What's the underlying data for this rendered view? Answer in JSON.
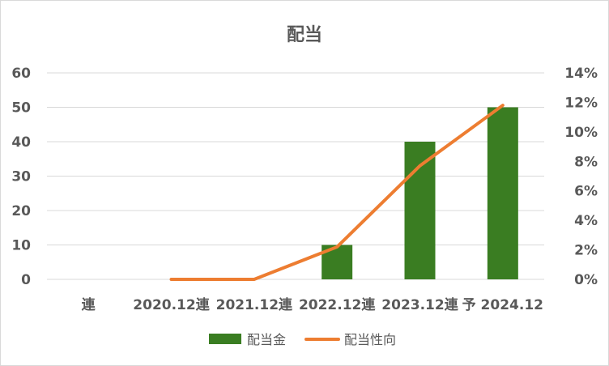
{
  "chart_data": {
    "type": "bar",
    "title": "配当",
    "categories": [
      "連",
      "2020.12連",
      "2021.12連",
      "2022.12連",
      "2023.12連",
      "予 2024.12"
    ],
    "y_left": {
      "lim": [
        0,
        60
      ],
      "ticks": [
        "0",
        "10",
        "20",
        "30",
        "40",
        "50",
        "60"
      ]
    },
    "y_right": {
      "lim": [
        0,
        14
      ],
      "ticks": [
        "0%",
        "2%",
        "4%",
        "6%",
        "8%",
        "10%",
        "12%",
        "14%"
      ]
    },
    "grid": true,
    "legend_position": "bottom",
    "series": [
      {
        "name": "配当金",
        "type": "bar",
        "axis": "left",
        "color": "#3a7d22",
        "x": [
          "2020.12連",
          "2021.12連",
          "2022.12連",
          "2023.12連",
          "予 2024.12"
        ],
        "values": [
          0,
          0,
          10,
          40,
          50
        ]
      },
      {
        "name": "配当性向",
        "type": "line",
        "axis": "right",
        "color": "#ed7d31",
        "x": [
          "2020.12連",
          "2021.12連",
          "2022.12連",
          "2023.12連",
          "予 2024.12"
        ],
        "values": [
          0,
          0,
          2.2,
          7.7,
          11.8
        ],
        "unit": "%"
      }
    ]
  }
}
